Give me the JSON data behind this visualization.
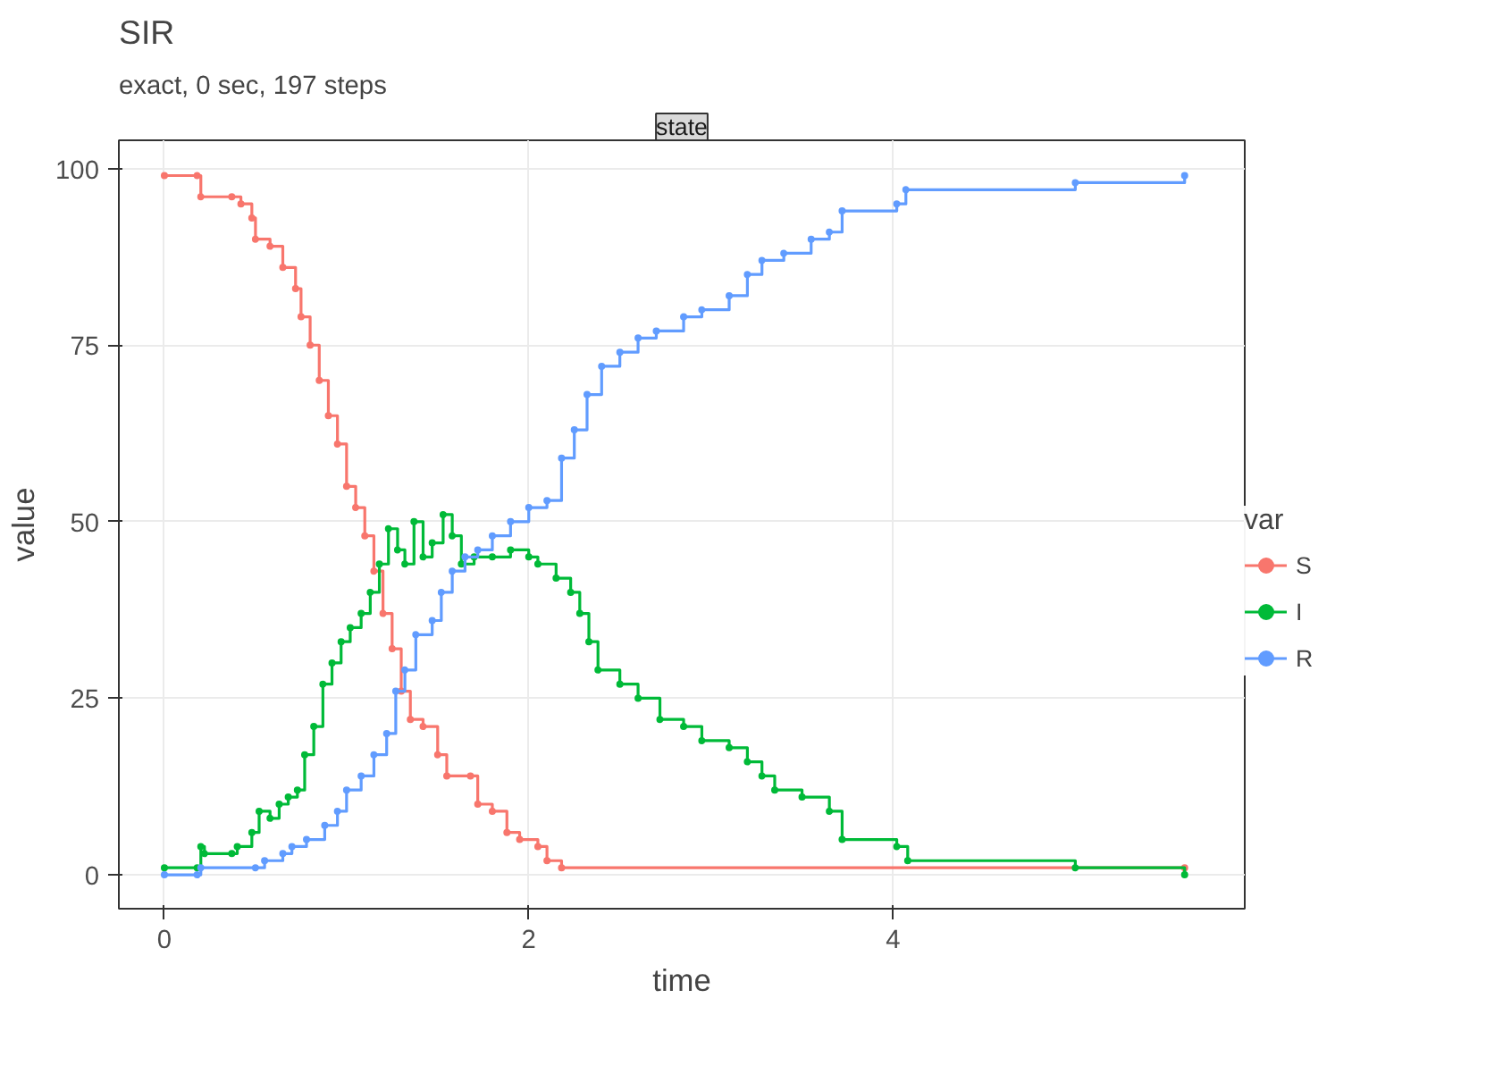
{
  "chart_data": {
    "type": "step",
    "title": "SIR",
    "subtitle": "exact, 0 sec, 197 steps",
    "xlabel": "time",
    "ylabel": "value",
    "legend_title": "var",
    "annotations": [
      "state"
    ],
    "xlim": [
      -0.25,
      5.93
    ],
    "ylim": [
      -4.8,
      104
    ],
    "xticks": [
      0,
      2,
      4
    ],
    "yticks": [
      0,
      25,
      50,
      75,
      100
    ],
    "grid": true,
    "legend": "right",
    "marker": "circle",
    "line_style": "solid",
    "series": [
      {
        "name": "S",
        "color": "#f8766d",
        "x": [
          0,
          0.18,
          0.2,
          0.37,
          0.42,
          0.48,
          0.5,
          0.58,
          0.65,
          0.72,
          0.75,
          0.8,
          0.85,
          0.9,
          0.95,
          1.0,
          1.05,
          1.1,
          1.15,
          1.2,
          1.25,
          1.3,
          1.35,
          1.42,
          1.5,
          1.55,
          1.68,
          1.72,
          1.8,
          1.88,
          1.95,
          2.05,
          2.1,
          2.18,
          5.6
        ],
        "values": [
          99,
          99,
          96,
          96,
          95,
          93,
          90,
          89,
          86,
          83,
          79,
          75,
          70,
          65,
          61,
          55,
          52,
          48,
          43,
          37,
          32,
          26,
          22,
          21,
          17,
          14,
          14,
          10,
          9,
          6,
          5,
          4,
          2,
          1,
          1
        ]
      },
      {
        "name": "I",
        "color": "#00ba38",
        "x": [
          0,
          0.18,
          0.2,
          0.22,
          0.37,
          0.4,
          0.48,
          0.52,
          0.58,
          0.63,
          0.68,
          0.73,
          0.77,
          0.82,
          0.87,
          0.92,
          0.97,
          1.02,
          1.08,
          1.13,
          1.18,
          1.23,
          1.28,
          1.32,
          1.37,
          1.42,
          1.47,
          1.53,
          1.58,
          1.63,
          1.7,
          1.8,
          1.9,
          2.0,
          2.05,
          2.15,
          2.23,
          2.28,
          2.33,
          2.38,
          2.5,
          2.6,
          2.72,
          2.85,
          2.95,
          3.1,
          3.2,
          3.28,
          3.35,
          3.5,
          3.65,
          3.72,
          4.02,
          4.08,
          5.0,
          5.6
        ],
        "values": [
          1,
          1,
          4,
          3,
          3,
          4,
          6,
          9,
          8,
          10,
          11,
          12,
          17,
          21,
          27,
          30,
          33,
          35,
          37,
          40,
          44,
          49,
          46,
          44,
          50,
          45,
          47,
          51,
          48,
          44,
          45,
          45,
          46,
          45,
          44,
          42,
          40,
          37,
          33,
          29,
          27,
          25,
          22,
          21,
          19,
          18,
          16,
          14,
          12,
          11,
          9,
          5,
          4,
          2,
          1,
          0
        ]
      },
      {
        "name": "R",
        "color": "#619cff",
        "x": [
          0,
          0.18,
          0.2,
          0.5,
          0.55,
          0.65,
          0.7,
          0.78,
          0.88,
          0.95,
          1.0,
          1.08,
          1.15,
          1.22,
          1.27,
          1.32,
          1.38,
          1.47,
          1.52,
          1.58,
          1.65,
          1.72,
          1.8,
          1.9,
          2.0,
          2.1,
          2.18,
          2.25,
          2.32,
          2.4,
          2.5,
          2.6,
          2.7,
          2.85,
          2.95,
          3.1,
          3.2,
          3.28,
          3.4,
          3.55,
          3.65,
          3.72,
          4.02,
          4.07,
          5.0,
          5.6
        ],
        "values": [
          0,
          0,
          1,
          1,
          2,
          3,
          4,
          5,
          7,
          9,
          12,
          14,
          17,
          20,
          26,
          29,
          34,
          36,
          40,
          43,
          45,
          46,
          48,
          50,
          52,
          53,
          59,
          63,
          68,
          72,
          74,
          76,
          77,
          79,
          80,
          82,
          85,
          87,
          88,
          90,
          91,
          94,
          95,
          97,
          98,
          99
        ]
      }
    ]
  }
}
